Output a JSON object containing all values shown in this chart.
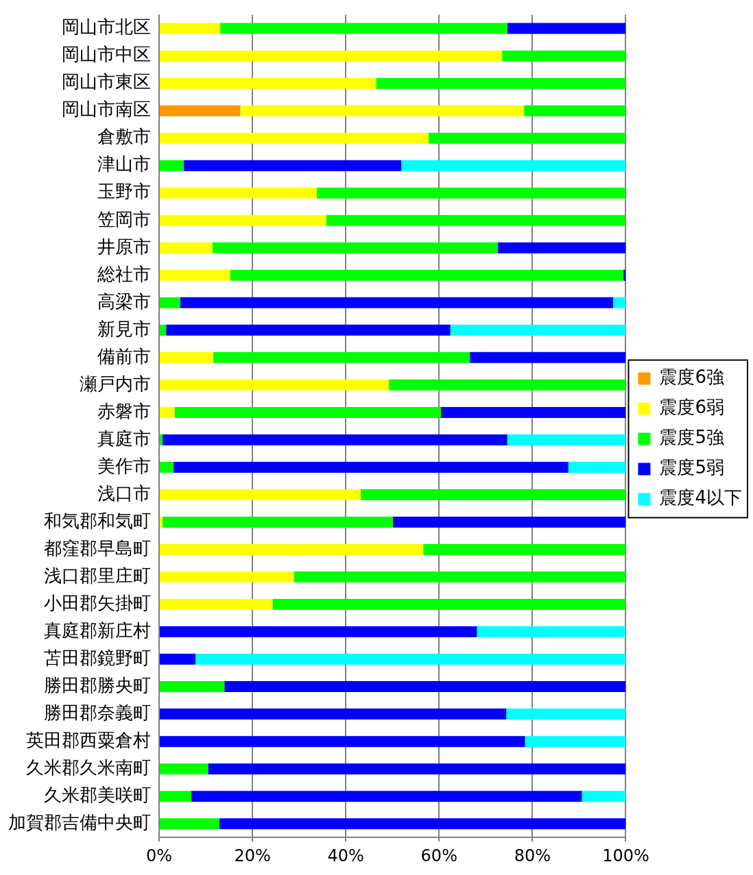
{
  "chart_data": {
    "type": "bar",
    "orientation": "horizontal",
    "stacked": true,
    "categories": [
      "岡山市北区",
      "岡山市中区",
      "岡山市東区",
      "岡山市南区",
      "倉敷市",
      "津山市",
      "玉野市",
      "笠岡市",
      "井原市",
      "総社市",
      "高梁市",
      "新見市",
      "備前市",
      "瀬戸内市",
      "赤磐市",
      "真庭市",
      "美作市",
      "浅口市",
      "和気郡和気町",
      "都窪郡早島町",
      "浅口郡里庄町",
      "小田郡矢掛町",
      "真庭郡新庄村",
      "苫田郡鏡野町",
      "勝田郡勝央町",
      "勝田郡奈義町",
      "英田郡西粟倉村",
      "久米郡久米南町",
      "久米郡美咲町",
      "加賀郡吉備中央町"
    ],
    "series": [
      {
        "name": "震度6強",
        "color": "#ff9900",
        "values": [
          0,
          0,
          0,
          17.4,
          0,
          0,
          0,
          0,
          0,
          0,
          0,
          0,
          0,
          0,
          0,
          0,
          0,
          0,
          0,
          0,
          0,
          0,
          0,
          0,
          0,
          0,
          0,
          0,
          0,
          0
        ]
      },
      {
        "name": "震度6弱",
        "color": "#ffff00",
        "values": [
          13.1,
          73.5,
          46.5,
          60.8,
          57.7,
          0,
          33.8,
          35.8,
          11.4,
          15.2,
          0,
          0,
          11.6,
          49.2,
          3.3,
          0,
          0,
          43.2,
          0.7,
          56.6,
          28.9,
          24.3,
          0,
          0,
          0,
          0,
          0,
          0,
          0,
          0
        ]
      },
      {
        "name": "震度5強",
        "color": "#00ff00",
        "values": [
          61.5,
          26.5,
          53.5,
          21.8,
          42.3,
          5.3,
          66.2,
          64.2,
          61.2,
          84.3,
          4.5,
          1.5,
          55,
          50.8,
          57.1,
          0.7,
          3.1,
          56.8,
          49.4,
          43.4,
          71.1,
          75.7,
          0,
          0,
          14,
          0,
          0,
          10.5,
          6.9,
          12.9
        ]
      },
      {
        "name": "震度5弱",
        "color": "#0000ff",
        "values": [
          25.4,
          0,
          0,
          0,
          0,
          46.6,
          0,
          0,
          27.4,
          0.5,
          92.8,
          60.9,
          33.4,
          0,
          39.6,
          73.9,
          84.6,
          0,
          49.9,
          0,
          0,
          0,
          68.1,
          7.8,
          86,
          74.4,
          78.4,
          89.5,
          83.7,
          87.1
        ]
      },
      {
        "name": "震度4以下",
        "color": "#00ffff",
        "values": [
          0,
          0,
          0,
          0,
          0,
          48.1,
          0,
          0,
          0,
          0,
          2.7,
          37.6,
          0,
          0,
          0,
          25.4,
          12.3,
          0,
          0,
          0,
          0,
          0,
          31.9,
          92.2,
          0,
          25.6,
          21.6,
          0,
          9.4,
          0
        ]
      }
    ],
    "xlim": [
      0,
      100
    ],
    "xticks": [
      {
        "value": 0,
        "label": "0%"
      },
      {
        "value": 20,
        "label": "20%"
      },
      {
        "value": 40,
        "label": "40%"
      },
      {
        "value": 60,
        "label": "60%"
      },
      {
        "value": 80,
        "label": "80%"
      },
      {
        "value": 100,
        "label": "100%"
      }
    ],
    "grid": "x",
    "legend": "right"
  }
}
